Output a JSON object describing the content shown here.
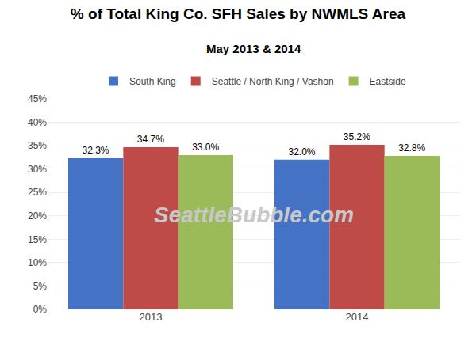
{
  "chart_data": {
    "type": "bar",
    "title": "% of Total King Co. SFH Sales by NWMLS Area",
    "subtitle": "May 2013 & 2014",
    "categories": [
      "2013",
      "2014"
    ],
    "series": [
      {
        "name": "South King",
        "color": "#4472C4",
        "values": [
          0.323,
          0.32
        ],
        "value_labels": [
          "32.3%",
          "32.0%"
        ]
      },
      {
        "name": "Seattle / North King / Vashon",
        "color": "#BE4B48",
        "values": [
          0.347,
          0.352
        ],
        "value_labels": [
          "34.7%",
          "35.2%"
        ]
      },
      {
        "name": "Eastside",
        "color": "#9BBB59",
        "values": [
          0.33,
          0.328
        ],
        "value_labels": [
          "33.0%",
          "32.8%"
        ]
      }
    ],
    "ylim": [
      0,
      0.45
    ],
    "yticks": [
      {
        "value": 0.0,
        "label": "0%"
      },
      {
        "value": 0.05,
        "label": "5%"
      },
      {
        "value": 0.1,
        "label": "10%"
      },
      {
        "value": 0.15,
        "label": "15%"
      },
      {
        "value": 0.2,
        "label": "20%"
      },
      {
        "value": 0.25,
        "label": "25%"
      },
      {
        "value": 0.3,
        "label": "30%"
      },
      {
        "value": 0.35,
        "label": "35%"
      },
      {
        "value": 0.4,
        "label": "40%"
      },
      {
        "value": 0.45,
        "label": "45%"
      }
    ],
    "grid": true,
    "legend": "upper center",
    "data_labels": true,
    "annotations": [
      {
        "text": "SeattleBubble.com",
        "color": "#c8c8c8"
      }
    ]
  }
}
